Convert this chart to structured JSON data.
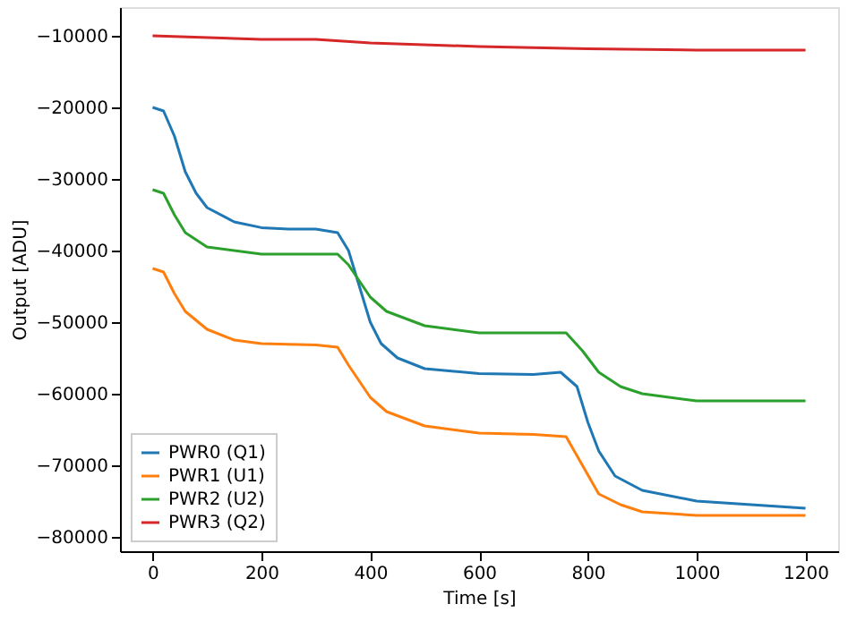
{
  "chart_data": {
    "type": "line",
    "xlabel": "Time [s]",
    "ylabel": "Output [ADU]",
    "xlim": [
      -60,
      1260
    ],
    "ylim": [
      -82000,
      -6000
    ],
    "xticks": [
      0,
      200,
      400,
      600,
      800,
      1000,
      1200
    ],
    "yticks": [
      -80000,
      -70000,
      -60000,
      -50000,
      -40000,
      -30000,
      -20000,
      -10000
    ],
    "grid": false,
    "legend": "bottom left",
    "series": [
      {
        "name": "PWR0 (Q1)",
        "color": "#1f77b4",
        "x": [
          0,
          20,
          40,
          60,
          80,
          100,
          150,
          200,
          250,
          300,
          340,
          360,
          380,
          400,
          420,
          450,
          500,
          600,
          700,
          750,
          780,
          800,
          820,
          850,
          900,
          1000,
          1100,
          1200
        ],
        "values": [
          -20000,
          -20500,
          -24000,
          -29000,
          -32000,
          -34000,
          -36000,
          -36800,
          -37000,
          -37000,
          -37500,
          -40000,
          -45000,
          -50000,
          -53000,
          -55000,
          -56500,
          -57200,
          -57300,
          -57000,
          -59000,
          -64000,
          -68000,
          -71500,
          -73500,
          -75000,
          -75500,
          -76000
        ]
      },
      {
        "name": "PWR1 (U1)",
        "color": "#ff7f0e",
        "x": [
          0,
          20,
          40,
          60,
          100,
          150,
          200,
          300,
          340,
          360,
          400,
          430,
          500,
          600,
          700,
          760,
          790,
          820,
          860,
          900,
          1000,
          1200
        ],
        "values": [
          -42500,
          -43000,
          -46000,
          -48500,
          -51000,
          -52500,
          -53000,
          -53200,
          -53500,
          -56000,
          -60500,
          -62500,
          -64500,
          -65500,
          -65700,
          -66000,
          -70000,
          -74000,
          -75500,
          -76500,
          -77000,
          -77000
        ]
      },
      {
        "name": "PWR2 (U2)",
        "color": "#2ca02c",
        "x": [
          0,
          20,
          40,
          60,
          100,
          200,
          340,
          360,
          400,
          430,
          500,
          600,
          700,
          760,
          790,
          820,
          860,
          900,
          1000,
          1200
        ],
        "values": [
          -31500,
          -32000,
          -35000,
          -37500,
          -39500,
          -40500,
          -40500,
          -42000,
          -46500,
          -48500,
          -50500,
          -51500,
          -51500,
          -51500,
          -54000,
          -57000,
          -59000,
          -60000,
          -61000,
          -61000
        ]
      },
      {
        "name": "PWR3 (Q2)",
        "color": "#d62728",
        "x": [
          0,
          200,
          300,
          400,
          600,
          800,
          1000,
          1200
        ],
        "values": [
          -10000,
          -10500,
          -10500,
          -11000,
          -11500,
          -11800,
          -12000,
          -12000
        ]
      }
    ]
  }
}
